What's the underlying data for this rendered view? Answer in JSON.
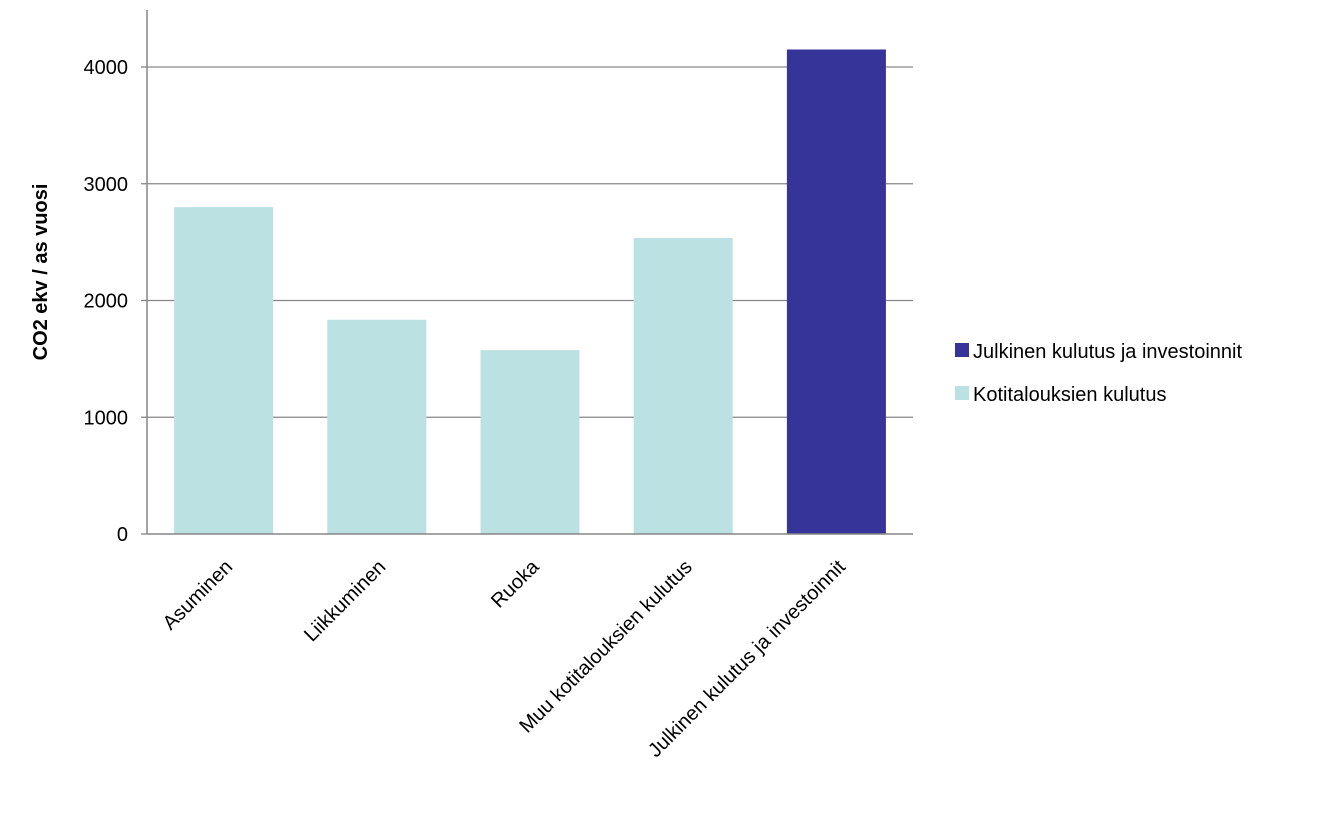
{
  "chart_data": {
    "type": "bar",
    "title": "",
    "xlabel": "",
    "ylabel": "CO2 ekv / as vuosi",
    "ylim": [
      0,
      4000
    ],
    "yticks": [
      0,
      1000,
      2000,
      3000,
      4000
    ],
    "grid": true,
    "legend_position": "right",
    "categories": [
      "Asuminen",
      "Liikkuminen",
      "Ruoka",
      "Muu kotitalouksien kulutus",
      "Julkinen kulutus ja investoinnit"
    ],
    "series": [
      {
        "name": "Kotitalouksien kulutus",
        "color": "#BCE1E3",
        "values": [
          2800,
          1835,
          1575,
          2535,
          null
        ]
      },
      {
        "name": "Julkinen kulutus ja investoinnit",
        "color": "#363399",
        "values": [
          null,
          null,
          null,
          null,
          4150
        ]
      }
    ],
    "legend": [
      {
        "label": "Julkinen kulutus ja investoinnit",
        "color": "#363399"
      },
      {
        "label": "Kotitalouksien kulutus",
        "color": "#BCE1E3"
      }
    ]
  }
}
